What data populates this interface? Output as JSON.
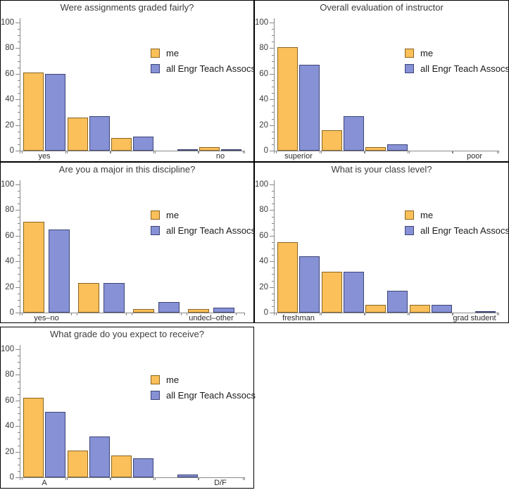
{
  "legend": {
    "me_label": "me",
    "all_label": "all Engr Teach Assocs"
  },
  "colors": {
    "me_fill": "#FBC05A",
    "me_edge": "#8A6420",
    "all_fill": "#8691D6",
    "all_edge": "#3E4577",
    "axis": "#898989",
    "title_text": "#3D3D3D"
  },
  "y_axis": {
    "major_ticks": [
      0,
      20,
      40,
      60,
      80,
      100
    ],
    "minor_step": 5
  },
  "chart_data": [
    {
      "type": "bar",
      "title": "Were assignments graded fairly?",
      "categories": [
        "yes",
        "",
        "",
        "",
        "no"
      ],
      "series": [
        {
          "name": "me",
          "values": [
            61,
            26,
            10,
            0,
            3
          ]
        },
        {
          "name": "all Engr Teach Assocs",
          "values": [
            60,
            27,
            11,
            1,
            1
          ]
        }
      ],
      "ylabel": "",
      "xlabel": "",
      "ylim": [
        0,
        105
      ],
      "grid": false,
      "legend_position": "upper right"
    },
    {
      "type": "bar",
      "title": "Overall evaluation of instructor",
      "categories": [
        "superior",
        "",
        "",
        "",
        "poor"
      ],
      "series": [
        {
          "name": "me",
          "values": [
            81,
            16,
            3,
            0,
            0
          ]
        },
        {
          "name": "all Engr Teach Assocs",
          "values": [
            67,
            27,
            5,
            0,
            0
          ]
        }
      ],
      "ylabel": "",
      "xlabel": "",
      "ylim": [
        0,
        105
      ],
      "grid": false,
      "legend_position": "upper right"
    },
    {
      "type": "bar",
      "title": "Are you a major in this discipline?",
      "categories": [
        "yes–no",
        "",
        "",
        "undecl–other"
      ],
      "series": [
        {
          "name": "me",
          "values": [
            71,
            23,
            3,
            3
          ]
        },
        {
          "name": "all Engr Teach Assocs",
          "values": [
            65,
            23,
            8,
            4
          ]
        }
      ],
      "ylabel": "",
      "xlabel": "",
      "ylim": [
        0,
        105
      ],
      "grid": false,
      "legend_position": "upper right"
    },
    {
      "type": "bar",
      "title": "What is your class level?",
      "categories": [
        "freshman",
        "",
        "",
        "",
        "grad student"
      ],
      "series": [
        {
          "name": "me",
          "values": [
            55,
            32,
            6,
            6,
            0
          ]
        },
        {
          "name": "all Engr Teach Assocs",
          "values": [
            44,
            32,
            17,
            6,
            1
          ]
        }
      ],
      "ylabel": "",
      "xlabel": "",
      "ylim": [
        0,
        105
      ],
      "grid": false,
      "legend_position": "upper right"
    },
    {
      "type": "bar",
      "title": "What grade do you expect to receive?",
      "categories": [
        "A",
        "",
        "",
        "",
        "D/F"
      ],
      "series": [
        {
          "name": "me",
          "values": [
            62,
            21,
            17,
            0,
            0
          ]
        },
        {
          "name": "all Engr Teach Assocs",
          "values": [
            51,
            32,
            15,
            2,
            0
          ]
        }
      ],
      "ylabel": "",
      "xlabel": "",
      "ylim": [
        0,
        105
      ],
      "grid": false,
      "legend_position": "upper right"
    }
  ]
}
